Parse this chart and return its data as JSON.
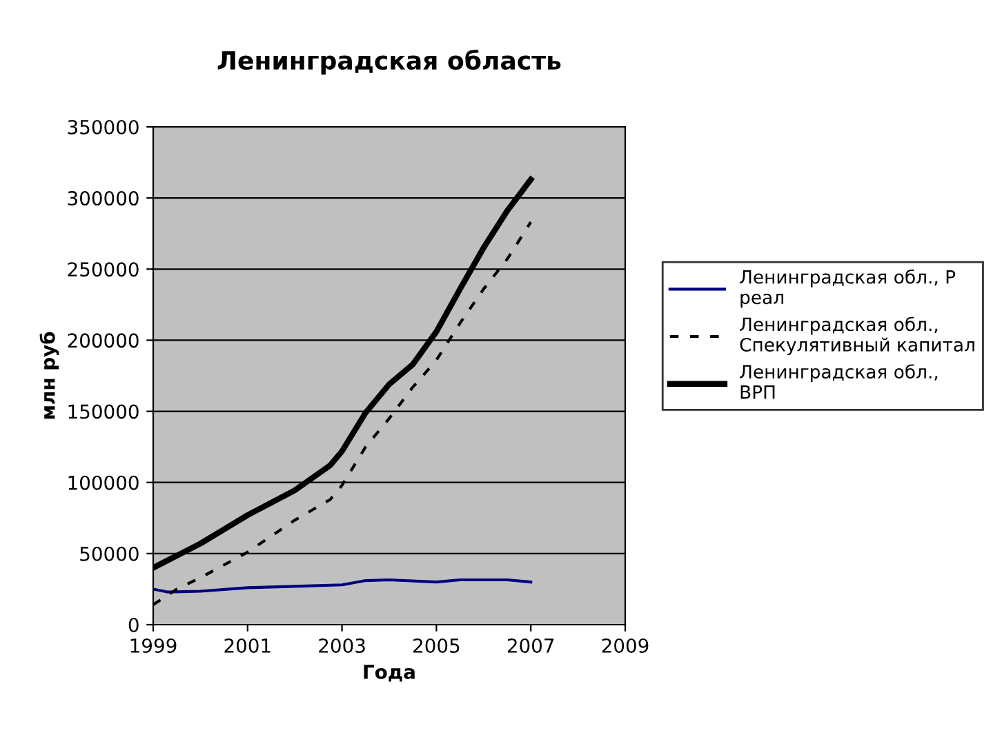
{
  "chart_data": {
    "type": "line",
    "title": "Ленинградская область",
    "xlabel": "Года",
    "ylabel": "млн руб",
    "xlim": [
      1999,
      2009
    ],
    "xticks": [
      1999,
      2001,
      2003,
      2005,
      2007,
      2009
    ],
    "ylim": [
      0,
      350000
    ],
    "yticks": [
      0,
      50000,
      100000,
      150000,
      200000,
      250000,
      300000,
      350000
    ],
    "grid": "y",
    "legend": "right",
    "marker": "none",
    "series": [
      {
        "name": "Ленинградская обл., Р реал",
        "color": "#000080",
        "line_style": "solid",
        "x": [
          1999,
          1999.3,
          2000,
          2001,
          2002,
          2003,
          2003.5,
          2004,
          2005,
          2005.5,
          2006,
          2006.5,
          2007
        ],
        "values": [
          25000,
          23000,
          23500,
          26000,
          27000,
          28000,
          31000,
          31500,
          30000,
          31500,
          31500,
          31500,
          30000
        ]
      },
      {
        "name": "Ленинградская обл., Спекулятивный капитал",
        "color": "#000000",
        "line_style": "dashed",
        "x": [
          1999,
          1999.5,
          2000,
          2001,
          2002,
          2002.75,
          2003,
          2003.5,
          2004,
          2004.5,
          2005,
          2005.5,
          2006,
          2006.5,
          2007
        ],
        "values": [
          14000,
          25000,
          33000,
          51000,
          73500,
          88000,
          98000,
          125000,
          145000,
          167000,
          186000,
          212000,
          236000,
          257000,
          283000
        ]
      },
      {
        "name": "Ленинградская обл., ВРП",
        "color": "#000000",
        "line_style": "solid",
        "x": [
          1999,
          2000,
          2001,
          2002,
          2002.75,
          2003,
          2003.5,
          2004,
          2004.5,
          2005,
          2005.5,
          2006,
          2006.5,
          2007
        ],
        "values": [
          40000,
          57000,
          77000,
          94500,
          112000,
          122000,
          149000,
          169000,
          183000,
          206000,
          236000,
          265000,
          291000,
          313000
        ]
      }
    ]
  }
}
